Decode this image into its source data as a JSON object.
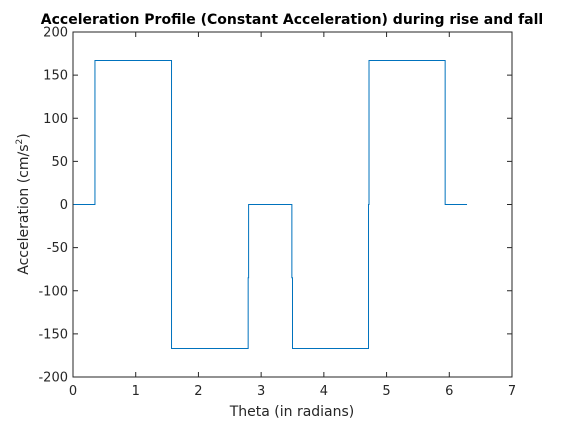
{
  "chart_data": {
    "type": "line",
    "title": "Acceleration Profile (Constant Acceleration) during rise and fall",
    "xlabel": "Theta (in radians)",
    "ylabel_main": "Acceleration (cm/s",
    "ylabel_sup": "2",
    "ylabel_end": ")",
    "xlim": [
      0,
      7
    ],
    "ylim": [
      -200,
      200
    ],
    "xticks": [
      0,
      1,
      2,
      3,
      4,
      5,
      6,
      7
    ],
    "yticks": [
      -200,
      -150,
      -100,
      -50,
      0,
      50,
      100,
      150,
      200
    ],
    "grid": false,
    "series": [
      {
        "color": "#0072BD",
        "points": [
          [
            0.0,
            0
          ],
          [
            0.35,
            0
          ],
          [
            0.35,
            167
          ],
          [
            1.571,
            167
          ],
          [
            1.571,
            -167
          ],
          [
            2.793,
            -167
          ],
          [
            2.793,
            -85
          ],
          [
            2.8,
            -85
          ],
          [
            2.8,
            0
          ],
          [
            3.49,
            0
          ],
          [
            3.49,
            -85
          ],
          [
            3.5,
            -85
          ],
          [
            3.5,
            -167
          ],
          [
            4.712,
            -167
          ],
          [
            4.712,
            0
          ],
          [
            4.72,
            0
          ],
          [
            4.72,
            167
          ],
          [
            5.934,
            167
          ],
          [
            5.934,
            0
          ],
          [
            6.283,
            0
          ]
        ]
      }
    ]
  }
}
